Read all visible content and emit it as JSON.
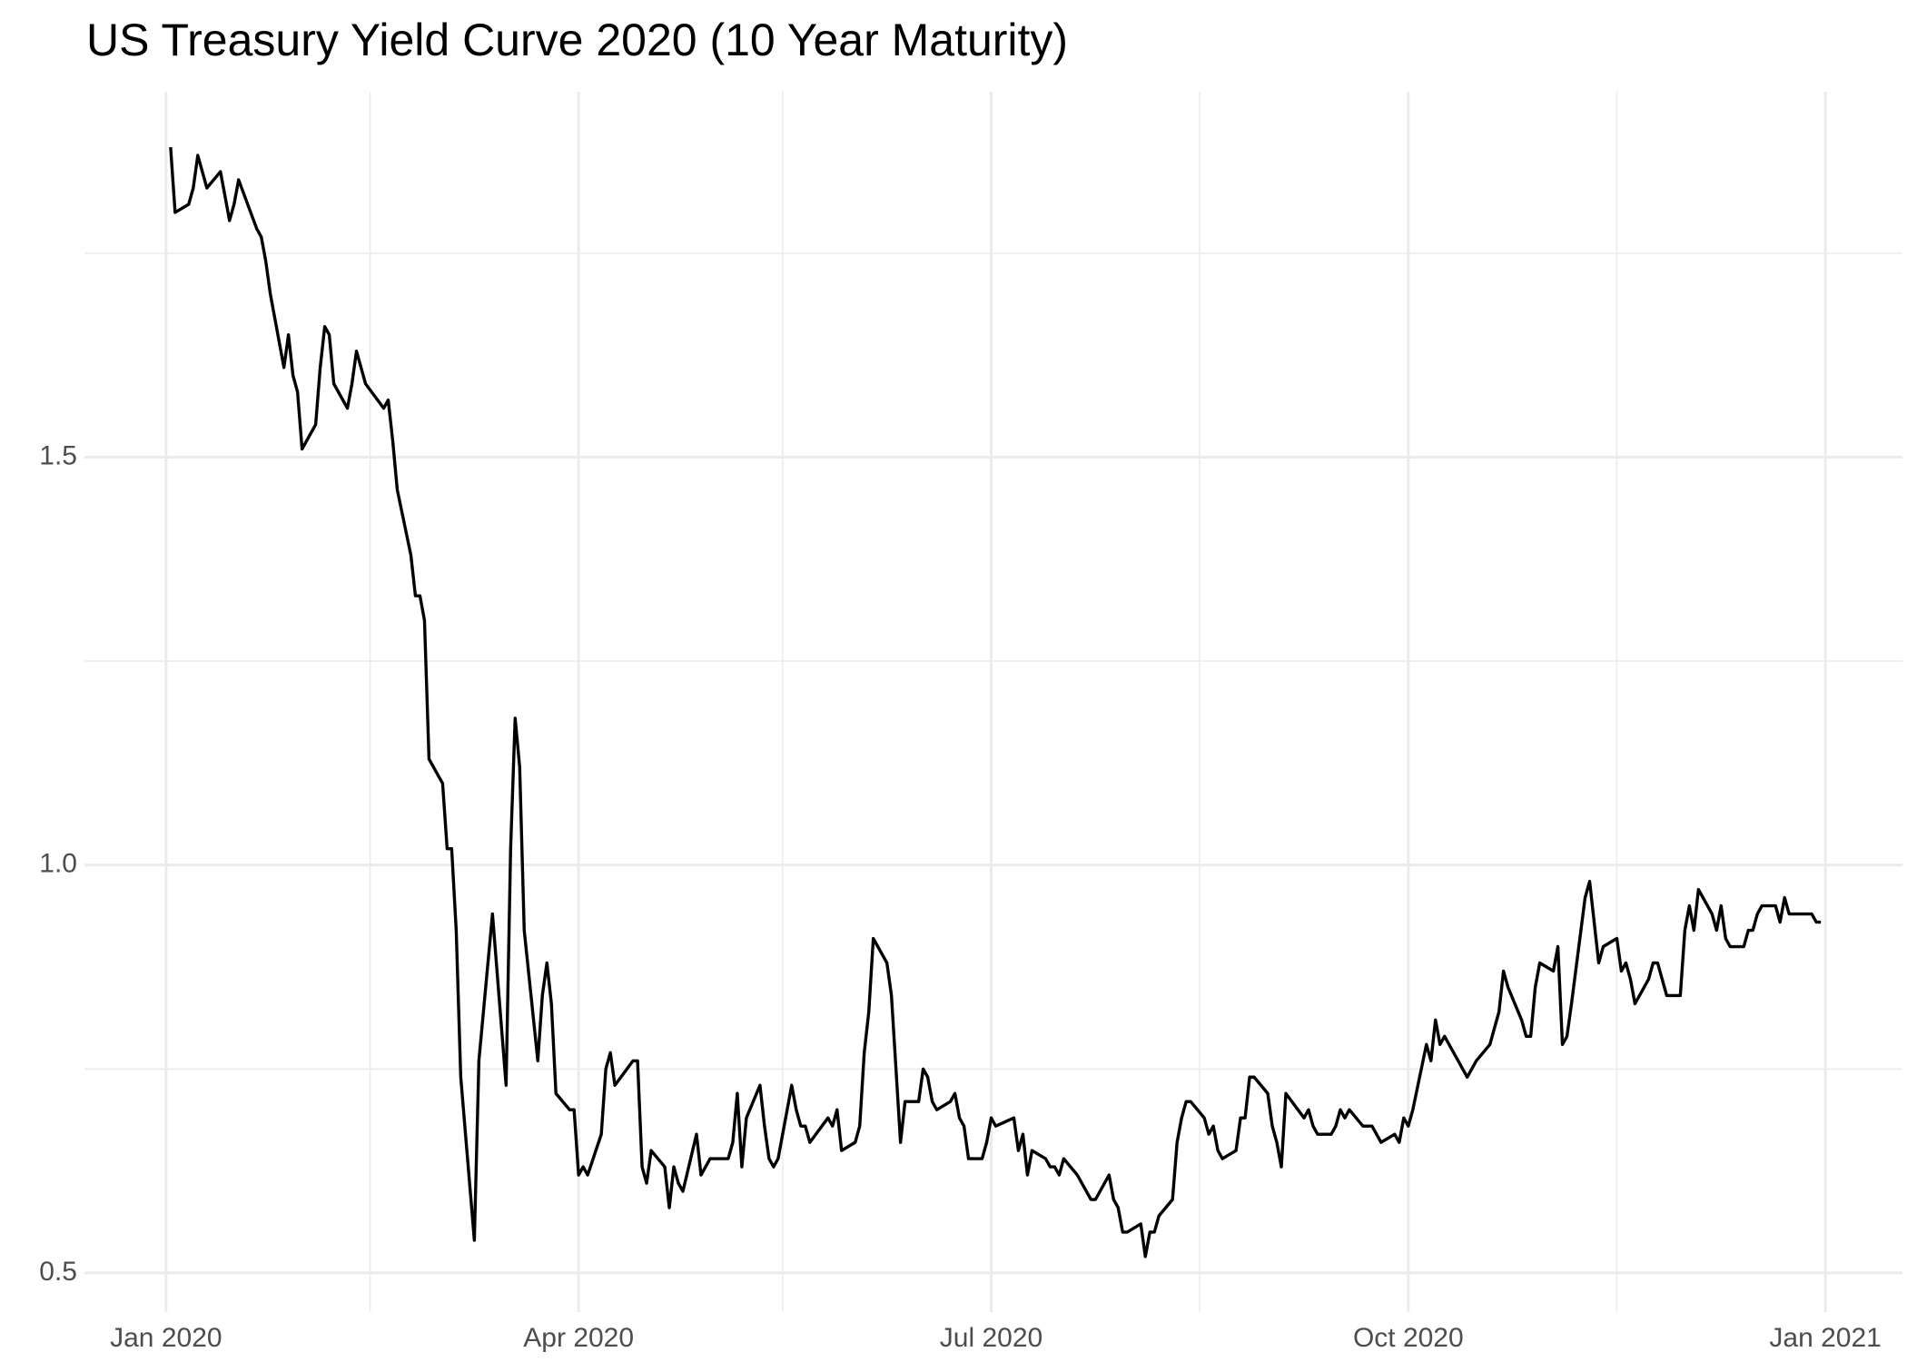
{
  "chart_data": {
    "type": "line",
    "title": "US Treasury Yield Curve 2020 (10 Year Maturity)",
    "color": "#000000",
    "grid": true,
    "xlim": [
      "2019-12-14",
      "2021-01-18"
    ],
    "xticks": [
      {
        "value": "2020-01-01",
        "label": "Jan 2020"
      },
      {
        "value": "2020-04-01",
        "label": "Apr 2020"
      },
      {
        "value": "2020-07-01",
        "label": "Jul 2020"
      },
      {
        "value": "2020-10-01",
        "label": "Oct 2020"
      },
      {
        "value": "2021-01-01",
        "label": "Jan 2021"
      }
    ],
    "xminor": [
      "2020-02-15",
      "2020-05-16",
      "2020-08-16",
      "2020-11-16"
    ],
    "ylim": [
      0.452,
      1.948
    ],
    "yticks": [
      0.5,
      {
        "value": 1,
        "label": "1.0"
      },
      1.5
    ],
    "yminor": [
      0.75,
      1.25,
      1.75
    ],
    "x": [
      "2020-01-02",
      "2020-01-03",
      "2020-01-06",
      "2020-01-07",
      "2020-01-08",
      "2020-01-09",
      "2020-01-10",
      "2020-01-13",
      "2020-01-14",
      "2020-01-15",
      "2020-01-16",
      "2020-01-17",
      "2020-01-21",
      "2020-01-22",
      "2020-01-23",
      "2020-01-24",
      "2020-01-27",
      "2020-01-28",
      "2020-01-29",
      "2020-01-30",
      "2020-01-31",
      "2020-02-03",
      "2020-02-04",
      "2020-02-05",
      "2020-02-06",
      "2020-02-07",
      "2020-02-10",
      "2020-02-11",
      "2020-02-12",
      "2020-02-13",
      "2020-02-14",
      "2020-02-18",
      "2020-02-19",
      "2020-02-20",
      "2020-02-21",
      "2020-02-24",
      "2020-02-25",
      "2020-02-26",
      "2020-02-27",
      "2020-02-28",
      "2020-03-02",
      "2020-03-03",
      "2020-03-04",
      "2020-03-05",
      "2020-03-06",
      "2020-03-09",
      "2020-03-10",
      "2020-03-11",
      "2020-03-12",
      "2020-03-13",
      "2020-03-16",
      "2020-03-17",
      "2020-03-18",
      "2020-03-19",
      "2020-03-20",
      "2020-03-23",
      "2020-03-24",
      "2020-03-25",
      "2020-03-26",
      "2020-03-27",
      "2020-03-30",
      "2020-03-31",
      "2020-04-01",
      "2020-04-02",
      "2020-04-03",
      "2020-04-06",
      "2020-04-07",
      "2020-04-08",
      "2020-04-09",
      "2020-04-13",
      "2020-04-14",
      "2020-04-15",
      "2020-04-16",
      "2020-04-17",
      "2020-04-20",
      "2020-04-21",
      "2020-04-22",
      "2020-04-23",
      "2020-04-24",
      "2020-04-27",
      "2020-04-28",
      "2020-04-29",
      "2020-04-30",
      "2020-05-01",
      "2020-05-04",
      "2020-05-05",
      "2020-05-06",
      "2020-05-07",
      "2020-05-08",
      "2020-05-11",
      "2020-05-12",
      "2020-05-13",
      "2020-05-14",
      "2020-05-15",
      "2020-05-18",
      "2020-05-19",
      "2020-05-20",
      "2020-05-21",
      "2020-05-22",
      "2020-05-26",
      "2020-05-27",
      "2020-05-28",
      "2020-05-29",
      "2020-06-01",
      "2020-06-02",
      "2020-06-03",
      "2020-06-04",
      "2020-06-05",
      "2020-06-08",
      "2020-06-09",
      "2020-06-10",
      "2020-06-11",
      "2020-06-12",
      "2020-06-15",
      "2020-06-16",
      "2020-06-17",
      "2020-06-18",
      "2020-06-19",
      "2020-06-22",
      "2020-06-23",
      "2020-06-24",
      "2020-06-25",
      "2020-06-26",
      "2020-06-29",
      "2020-06-30",
      "2020-07-01",
      "2020-07-02",
      "2020-07-06",
      "2020-07-07",
      "2020-07-08",
      "2020-07-09",
      "2020-07-10",
      "2020-07-13",
      "2020-07-14",
      "2020-07-15",
      "2020-07-16",
      "2020-07-17",
      "2020-07-20",
      "2020-07-21",
      "2020-07-22",
      "2020-07-23",
      "2020-07-24",
      "2020-07-27",
      "2020-07-28",
      "2020-07-29",
      "2020-07-30",
      "2020-07-31",
      "2020-08-03",
      "2020-08-04",
      "2020-08-05",
      "2020-08-06",
      "2020-08-07",
      "2020-08-10",
      "2020-08-11",
      "2020-08-12",
      "2020-08-13",
      "2020-08-14",
      "2020-08-17",
      "2020-08-18",
      "2020-08-19",
      "2020-08-20",
      "2020-08-21",
      "2020-08-24",
      "2020-08-25",
      "2020-08-26",
      "2020-08-27",
      "2020-08-28",
      "2020-08-31",
      "2020-09-01",
      "2020-09-02",
      "2020-09-03",
      "2020-09-04",
      "2020-09-08",
      "2020-09-09",
      "2020-09-10",
      "2020-09-11",
      "2020-09-14",
      "2020-09-15",
      "2020-09-16",
      "2020-09-17",
      "2020-09-18",
      "2020-09-21",
      "2020-09-22",
      "2020-09-23",
      "2020-09-24",
      "2020-09-25",
      "2020-09-28",
      "2020-09-29",
      "2020-09-30",
      "2020-10-01",
      "2020-10-02",
      "2020-10-05",
      "2020-10-06",
      "2020-10-07",
      "2020-10-08",
      "2020-10-09",
      "2020-10-13",
      "2020-10-14",
      "2020-10-15",
      "2020-10-16",
      "2020-10-19",
      "2020-10-20",
      "2020-10-21",
      "2020-10-22",
      "2020-10-23",
      "2020-10-26",
      "2020-10-27",
      "2020-10-28",
      "2020-10-29",
      "2020-10-30",
      "2020-11-02",
      "2020-11-03",
      "2020-11-04",
      "2020-11-05",
      "2020-11-06",
      "2020-11-09",
      "2020-11-10",
      "2020-11-12",
      "2020-11-13",
      "2020-11-16",
      "2020-11-17",
      "2020-11-18",
      "2020-11-19",
      "2020-11-20",
      "2020-11-23",
      "2020-11-24",
      "2020-11-25",
      "2020-11-27",
      "2020-11-30",
      "2020-12-01",
      "2020-12-02",
      "2020-12-03",
      "2020-12-04",
      "2020-12-07",
      "2020-12-08",
      "2020-12-09",
      "2020-12-10",
      "2020-12-11",
      "2020-12-14",
      "2020-12-15",
      "2020-12-16",
      "2020-12-17",
      "2020-12-18",
      "2020-12-21",
      "2020-12-22",
      "2020-12-23",
      "2020-12-24",
      "2020-12-28",
      "2020-12-29",
      "2020-12-30",
      "2020-12-31"
    ],
    "values": [
      1.88,
      1.8,
      1.81,
      1.83,
      1.87,
      1.85,
      1.83,
      1.85,
      1.82,
      1.79,
      1.81,
      1.84,
      1.78,
      1.77,
      1.74,
      1.7,
      1.61,
      1.65,
      1.6,
      1.58,
      1.51,
      1.54,
      1.61,
      1.66,
      1.65,
      1.59,
      1.56,
      1.59,
      1.63,
      1.61,
      1.59,
      1.56,
      1.57,
      1.52,
      1.46,
      1.38,
      1.33,
      1.33,
      1.3,
      1.13,
      1.1,
      1.02,
      1.02,
      0.92,
      0.74,
      0.54,
      0.76,
      0.82,
      0.88,
      0.94,
      0.73,
      1.02,
      1.18,
      1.12,
      0.92,
      0.76,
      0.84,
      0.88,
      0.83,
      0.72,
      0.7,
      0.7,
      0.62,
      0.63,
      0.62,
      0.67,
      0.75,
      0.77,
      0.73,
      0.76,
      0.76,
      0.63,
      0.61,
      0.65,
      0.63,
      0.58,
      0.63,
      0.61,
      0.6,
      0.67,
      0.62,
      0.63,
      0.64,
      0.64,
      0.64,
      0.66,
      0.72,
      0.63,
      0.69,
      0.73,
      0.68,
      0.64,
      0.63,
      0.64,
      0.73,
      0.7,
      0.68,
      0.68,
      0.66,
      0.69,
      0.68,
      0.7,
      0.65,
      0.66,
      0.68,
      0.77,
      0.82,
      0.91,
      0.88,
      0.84,
      0.75,
      0.66,
      0.71,
      0.71,
      0.75,
      0.74,
      0.71,
      0.7,
      0.71,
      0.72,
      0.69,
      0.68,
      0.64,
      0.64,
      0.66,
      0.69,
      0.68,
      0.69,
      0.65,
      0.67,
      0.62,
      0.65,
      0.64,
      0.63,
      0.63,
      0.62,
      0.64,
      0.62,
      0.61,
      0.6,
      0.59,
      0.59,
      0.62,
      0.59,
      0.58,
      0.55,
      0.55,
      0.56,
      0.52,
      0.55,
      0.55,
      0.57,
      0.59,
      0.66,
      0.69,
      0.71,
      0.71,
      0.69,
      0.67,
      0.68,
      0.65,
      0.64,
      0.65,
      0.69,
      0.69,
      0.74,
      0.74,
      0.72,
      0.68,
      0.66,
      0.63,
      0.72,
      0.69,
      0.7,
      0.68,
      0.67,
      0.67,
      0.68,
      0.7,
      0.69,
      0.7,
      0.68,
      0.68,
      0.68,
      0.67,
      0.66,
      0.67,
      0.66,
      0.69,
      0.68,
      0.7,
      0.78,
      0.76,
      0.81,
      0.78,
      0.79,
      0.75,
      0.74,
      0.75,
      0.76,
      0.78,
      0.8,
      0.82,
      0.87,
      0.85,
      0.81,
      0.79,
      0.79,
      0.85,
      0.88,
      0.87,
      0.9,
      0.78,
      0.79,
      0.83,
      0.96,
      0.98,
      0.88,
      0.9,
      0.91,
      0.87,
      0.88,
      0.86,
      0.83,
      0.86,
      0.88,
      0.88,
      0.84,
      0.84,
      0.92,
      0.95,
      0.92,
      0.97,
      0.94,
      0.92,
      0.95,
      0.91,
      0.9,
      0.9,
      0.92,
      0.92,
      0.94,
      0.95,
      0.95,
      0.93,
      0.96,
      0.94,
      0.94,
      0.94,
      0.93,
      0.93
    ]
  }
}
